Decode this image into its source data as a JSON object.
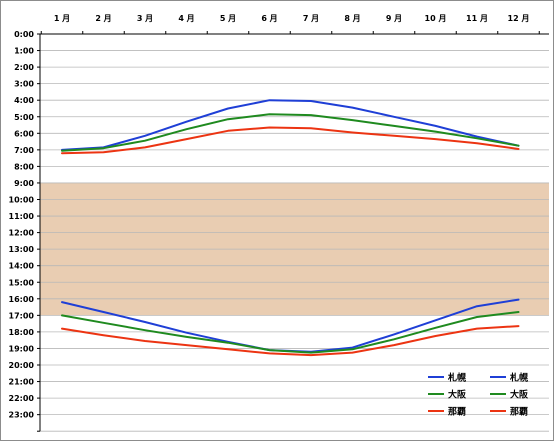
{
  "chart_data": {
    "type": "line",
    "x_categories": [
      "1 月",
      "2 月",
      "3 月",
      "4 月",
      "5 月",
      "6 月",
      "7 月",
      "8 月",
      "9 月",
      "10 月",
      "11 月",
      "12 月"
    ],
    "y_tick_labels": [
      "0:00",
      "1:00",
      "2:00",
      "3:00",
      "4:00",
      "5:00",
      "6:00",
      "7:00",
      "8:00",
      "9:00",
      "10:00",
      "11:00",
      "12:00",
      "13:00",
      "14:00",
      "15:00",
      "16:00",
      "17:00",
      "18:00",
      "19:00",
      "20:00",
      "21:00",
      "22:00",
      "23:00"
    ],
    "y_axis": {
      "min_hour": 0,
      "max_hour": 24,
      "inverted": true,
      "unit": "hour of day"
    },
    "x_axis_position": "top",
    "grid": {
      "horizontal": true,
      "vertical": false
    },
    "shaded_band": {
      "from_hour": 9,
      "to_hour": 17,
      "color": "#e9cdb2"
    },
    "series": [
      {
        "name": "札幌",
        "kind": "sunrise",
        "color": "#1f3fd6",
        "values": [
          7.0,
          6.85,
          6.15,
          5.3,
          4.5,
          4.0,
          4.05,
          4.45,
          5.0,
          5.55,
          6.2,
          6.75
        ]
      },
      {
        "name": "大阪",
        "kind": "sunrise",
        "color": "#1f8a1f",
        "values": [
          7.05,
          6.9,
          6.45,
          5.75,
          5.15,
          4.85,
          4.9,
          5.2,
          5.55,
          5.9,
          6.3,
          6.75
        ]
      },
      {
        "name": "那覇",
        "kind": "sunrise",
        "color": "#ec3412",
        "values": [
          7.2,
          7.15,
          6.85,
          6.35,
          5.85,
          5.65,
          5.7,
          5.95,
          6.15,
          6.35,
          6.6,
          6.95
        ]
      },
      {
        "name": "札幌",
        "kind": "sunset",
        "color": "#1f3fd6",
        "values": [
          16.2,
          16.8,
          17.4,
          18.05,
          18.6,
          19.1,
          19.2,
          18.95,
          18.15,
          17.3,
          16.45,
          16.05
        ]
      },
      {
        "name": "大阪",
        "kind": "sunset",
        "color": "#1f8a1f",
        "values": [
          17.0,
          17.45,
          17.9,
          18.3,
          18.65,
          19.1,
          19.25,
          19.05,
          18.45,
          17.75,
          17.1,
          16.8
        ]
      },
      {
        "name": "那覇",
        "kind": "sunset",
        "color": "#ec3412",
        "values": [
          17.8,
          18.2,
          18.55,
          18.8,
          19.05,
          19.3,
          19.4,
          19.25,
          18.8,
          18.25,
          17.8,
          17.65
        ]
      }
    ],
    "legend": {
      "position": "bottom-right",
      "columns": [
        [
          {
            "label": "札幌",
            "color": "#1f3fd6"
          },
          {
            "label": "大阪",
            "color": "#1f8a1f"
          },
          {
            "label": "那覇",
            "color": "#ec3412"
          }
        ],
        [
          {
            "label": "札幌",
            "color": "#1f3fd6"
          },
          {
            "label": "大阪",
            "color": "#1f8a1f"
          },
          {
            "label": "那覇",
            "color": "#ec3412"
          }
        ]
      ]
    },
    "colors": {
      "axis": "#000000",
      "grid": "#b8b8b8",
      "frame": "#8c8c8c",
      "background": "#ffffff"
    }
  }
}
